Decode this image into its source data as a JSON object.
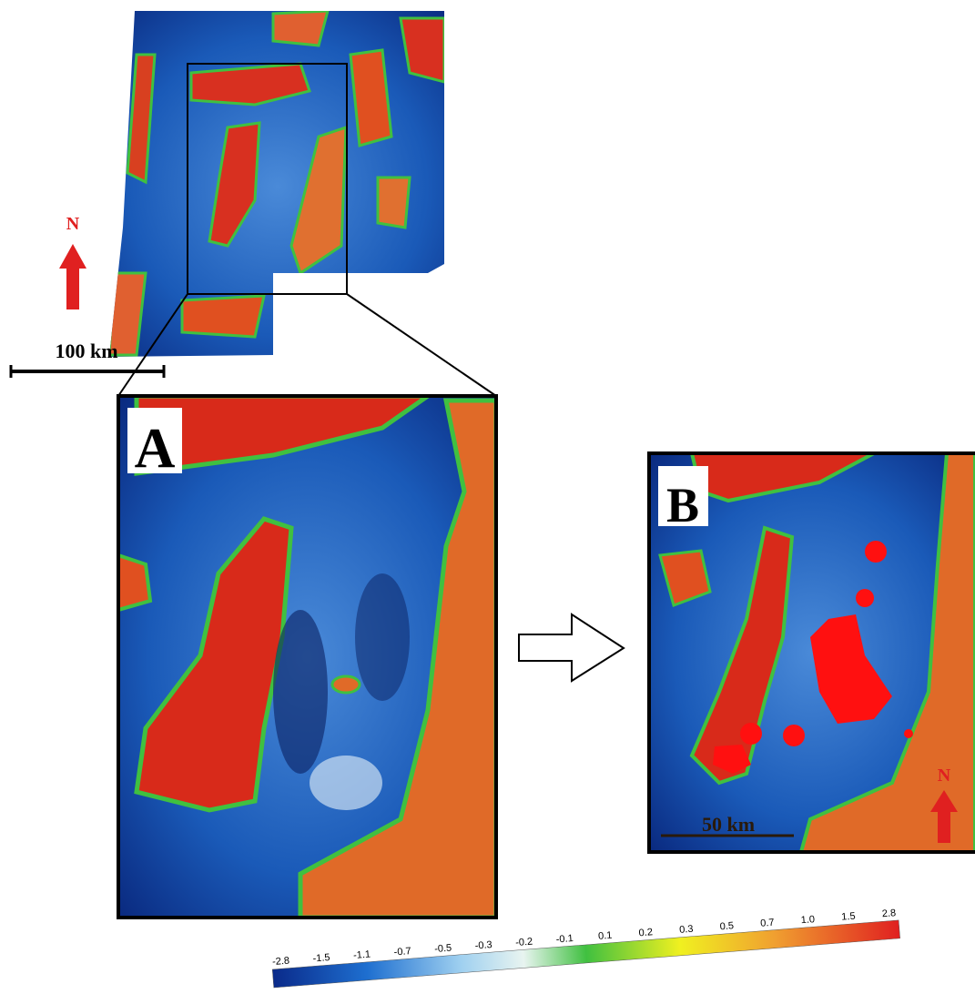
{
  "overview": {
    "north": "N",
    "scale": "100 km"
  },
  "panel_a": {
    "label": "A"
  },
  "panel_b": {
    "label": "B",
    "scale": "50 km",
    "north": "N"
  },
  "colorbar": {
    "labels": [
      "-2.8",
      "-1.5",
      "-1.1",
      "-0.7",
      "-0.5",
      "-0.3",
      "-0.2",
      "-0.1",
      "0.1",
      "0.2",
      "0.3",
      "0.5",
      "0.7",
      "1.0",
      "1.5",
      "2.8"
    ]
  }
}
